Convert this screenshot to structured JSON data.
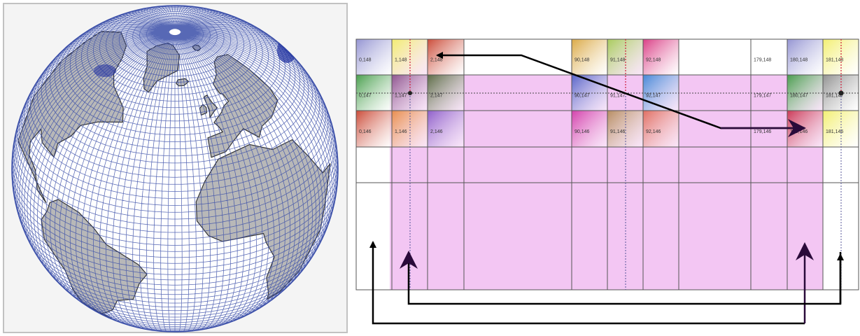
{
  "globe": {
    "grid_color": "#3a4ea8",
    "land_color": "#b8b8b8",
    "ocean_color": "#ffffff"
  },
  "grid": {
    "highlight_color": "#f3c6f3",
    "rows": [
      {
        "cells": [
          {
            "label": "0,148",
            "color": "#8f8fd0"
          },
          {
            "label": "1,148",
            "color": "#f2ee6a"
          },
          {
            "label": "2,148",
            "color": "#c9432f"
          },
          {
            "label": "",
            "color": ""
          },
          {
            "label": "90,148",
            "color": "#d9a53c"
          },
          {
            "label": "91,148",
            "color": "#a5cc55"
          },
          {
            "label": "92,148",
            "color": "#d8347f"
          },
          {
            "label": "",
            "color": ""
          },
          {
            "label": "179,148",
            "color": ""
          },
          {
            "label": "180,148",
            "color": "#8f8fd0"
          },
          {
            "label": "181,148",
            "color": "#f2ee6a"
          }
        ]
      },
      {
        "cells": [
          {
            "label": "0,147",
            "color": "#3f9a44"
          },
          {
            "label": "1,147",
            "color": "#8a4f8a"
          },
          {
            "label": "2,147",
            "color": "#54673c"
          },
          {
            "label": "",
            "color": ""
          },
          {
            "label": "90,147",
            "color": "#4f5fc6"
          },
          {
            "label": "91,147",
            "color": ""
          },
          {
            "label": "92,147",
            "color": "#3d84d6"
          },
          {
            "label": "",
            "color": ""
          },
          {
            "label": "179,147",
            "color": ""
          },
          {
            "label": "180,147",
            "color": "#3f9a44"
          },
          {
            "label": "181,147",
            "color": "#8c8c8c"
          }
        ]
      },
      {
        "cells": [
          {
            "label": "0,146",
            "color": "#c9432f"
          },
          {
            "label": "1,146",
            "color": "#e88a44"
          },
          {
            "label": "2,146",
            "color": "#8a5ac8"
          },
          {
            "label": "",
            "color": ""
          },
          {
            "label": "90,146",
            "color": "#d23aa8"
          },
          {
            "label": "91,146",
            "color": "#b48a5a"
          },
          {
            "label": "92,146",
            "color": "#e06a5a"
          },
          {
            "label": "",
            "color": ""
          },
          {
            "label": "179,146",
            "color": ""
          },
          {
            "label": "180,146",
            "color": "#c9334f"
          },
          {
            "label": "181,146",
            "color": "#f2ee6a"
          }
        ]
      }
    ]
  }
}
